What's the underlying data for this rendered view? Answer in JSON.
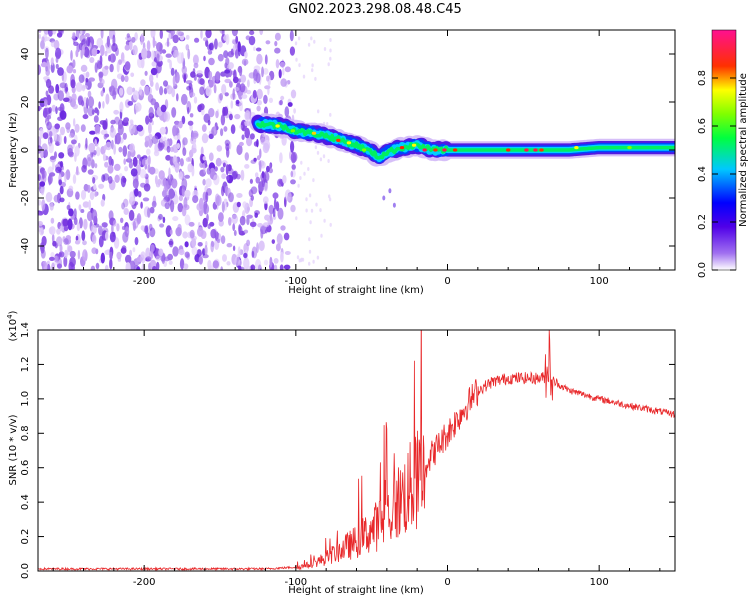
{
  "title": "GN02.2023.298.08.48.C45",
  "chart_data": [
    {
      "type": "heatmap",
      "xlabel": "Height of straight line (km)",
      "ylabel": "Frequency (Hz)",
      "xlim": [
        -270,
        150
      ],
      "ylim": [
        -50,
        50
      ],
      "xticks": [
        "-200",
        "-100",
        "0",
        "100"
      ],
      "yticks": [
        "-40",
        "-20",
        "0",
        "20",
        "40"
      ],
      "colorbar": {
        "label": "Normalized spectral amplitude",
        "range": [
          0,
          1
        ],
        "ticks": [
          "0.0",
          "0.2",
          "0.4",
          "0.6",
          "0.8"
        ],
        "colors": [
          "#ffffff",
          "#8a2be2",
          "#0000ff",
          "#00bfff",
          "#00ff00",
          "#ffff00",
          "#ff0000",
          "#ff1493"
        ]
      },
      "ridge": {
        "x": [
          -125,
          -110,
          -100,
          -90,
          -80,
          -70,
          -60,
          -50,
          -45,
          -40,
          -30,
          -20,
          -10,
          0,
          20,
          40,
          60,
          80,
          100,
          120,
          150
        ],
        "y": [
          11,
          10,
          8,
          7,
          6,
          4,
          2,
          -1,
          -3,
          -1,
          1,
          2,
          0,
          0,
          0,
          0,
          0,
          0,
          1,
          1,
          1
        ]
      }
    },
    {
      "type": "line",
      "xlabel": "Height of straight line (km)",
      "ylabel": "SNR (10 * v/v)",
      "scale_label": "(x10",
      "scale_exp": "4",
      "xlim": [
        -270,
        150
      ],
      "ylim": [
        0,
        1.4
      ],
      "xticks": [
        "-200",
        "-100",
        "0",
        "100"
      ],
      "yticks": [
        "0.0",
        "0.2",
        "0.4",
        "0.6",
        "0.8",
        "1.0",
        "1.2",
        "1.4"
      ],
      "series": [
        {
          "color": "#e8282a",
          "x": [
            -270,
            -200,
            -120,
            -100,
            -90,
            -80,
            -70,
            -60,
            -50,
            -40,
            -30,
            -20,
            -10,
            0,
            10,
            20,
            30,
            40,
            50,
            60,
            68,
            70,
            80,
            100,
            120,
            150
          ],
          "y": [
            0.01,
            0.01,
            0.01,
            0.02,
            0.04,
            0.08,
            0.13,
            0.18,
            0.25,
            0.33,
            0.45,
            0.55,
            0.68,
            0.8,
            0.93,
            1.05,
            1.1,
            1.12,
            1.12,
            1.12,
            1.13,
            1.1,
            1.05,
            1.0,
            0.96,
            0.91
          ]
        }
      ]
    }
  ]
}
